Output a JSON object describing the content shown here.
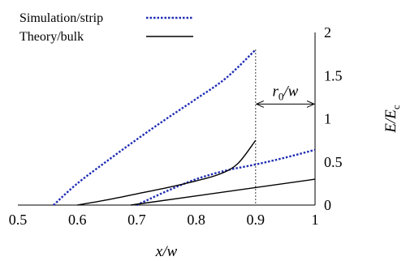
{
  "chart_data": {
    "type": "line",
    "title": "",
    "xlabel": "x/w",
    "ylabel": "E/E_c",
    "xlim": [
      0.5,
      1.0
    ],
    "ylim": [
      0,
      2
    ],
    "x_ticks": [
      "0.5",
      "0.6",
      "0.7",
      "0.8",
      "0.9",
      "1"
    ],
    "y_ticks": [
      "0",
      "0.5",
      "1",
      "1.5",
      "2"
    ],
    "y_axis_side": "right",
    "grid": false,
    "legend": {
      "position": "top-left",
      "entries": [
        {
          "label": "Simulation/strip",
          "color": "#1f2db4",
          "dash": "dotted"
        },
        {
          "label": "Theory/bulk",
          "color": "#000000",
          "dash": "solid"
        }
      ]
    },
    "series": [
      {
        "label": "Simulation/strip",
        "color": "#1f2db4",
        "dash": "dotted",
        "x": [
          0.56,
          0.6,
          0.65,
          0.7,
          0.75,
          0.8,
          0.85,
          0.9
        ],
        "y": [
          0.0,
          0.25,
          0.51,
          0.76,
          1.0,
          1.23,
          1.47,
          1.8
        ]
      },
      {
        "label": "Simulation/strip",
        "color": "#1f2db4",
        "dash": "dotted",
        "x": [
          0.7,
          0.75,
          0.8,
          0.85,
          0.9,
          0.95,
          1.0
        ],
        "y": [
          0.0,
          0.16,
          0.3,
          0.4,
          0.47,
          0.55,
          0.64
        ]
      },
      {
        "label": "Theory/bulk",
        "color": "#000000",
        "dash": "solid",
        "x": [
          0.6,
          0.65,
          0.7,
          0.75,
          0.8,
          0.84,
          0.87,
          0.9
        ],
        "y": [
          0.0,
          0.06,
          0.13,
          0.2,
          0.28,
          0.36,
          0.48,
          0.75
        ]
      },
      {
        "label": "Theory/bulk",
        "color": "#000000",
        "dash": "solid",
        "x": [
          0.69,
          1.0
        ],
        "y": [
          0.0,
          0.3
        ]
      }
    ],
    "reference_lines": [
      {
        "axis": "x",
        "value": 0.9,
        "style": "dotted",
        "color": "#000000"
      }
    ],
    "annotations": [
      {
        "text": "r_0/w",
        "type": "double-arrow",
        "x_from": 0.9,
        "x_to": 1.0,
        "y": 1.17
      }
    ]
  }
}
